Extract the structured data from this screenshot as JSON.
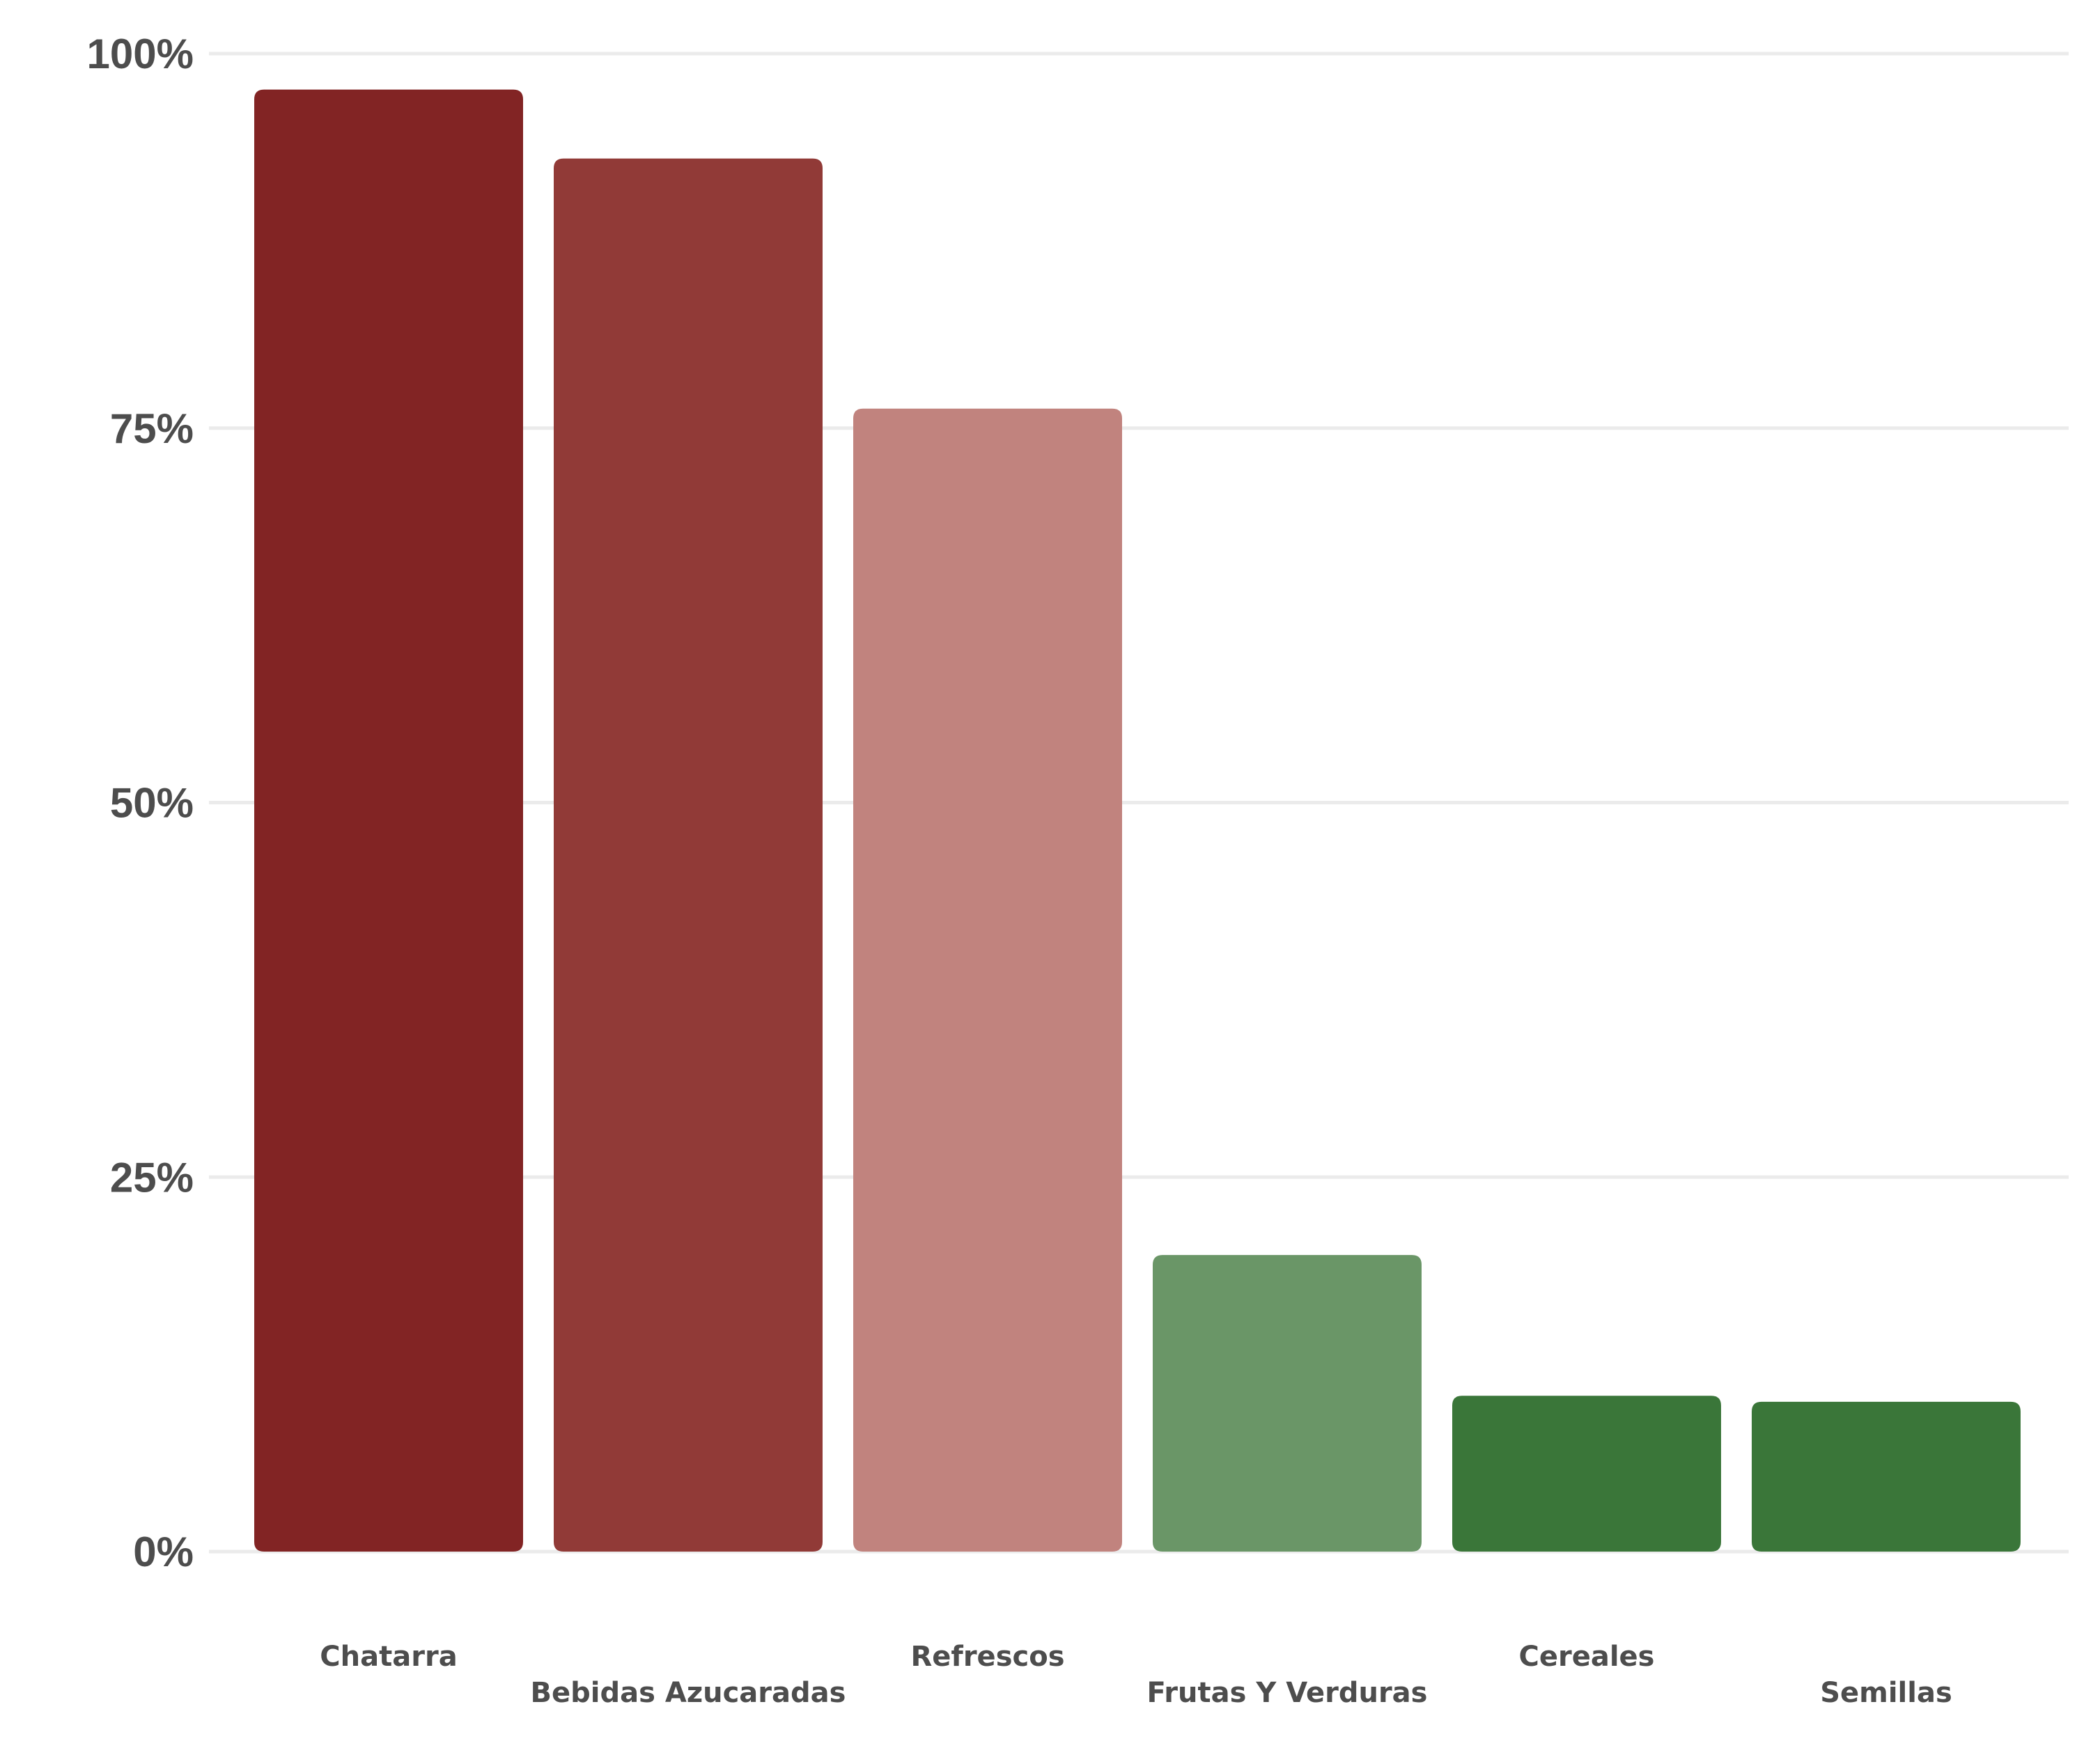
{
  "chart_data": {
    "type": "bar",
    "title": "",
    "xlabel": "",
    "ylabel": "",
    "categories": [
      "Chatarra",
      "Bebidas Azucaradas",
      "Refrescos",
      "Frutas Y Verduras",
      "Cereales",
      "Semillas"
    ],
    "values": [
      97.6,
      93.0,
      76.3,
      19.8,
      10.4,
      10.0
    ],
    "colors": [
      "#822424",
      "#913a37",
      "#c1837e",
      "#6a9667",
      "#3a7639",
      "#3a7639"
    ],
    "ylim": [
      0,
      100
    ],
    "yticks": [
      "0%",
      "25%",
      "50%",
      "75%",
      "100%"
    ],
    "ytick_values": [
      0,
      25,
      50,
      75,
      100
    ],
    "grid": true,
    "legend": "none"
  }
}
